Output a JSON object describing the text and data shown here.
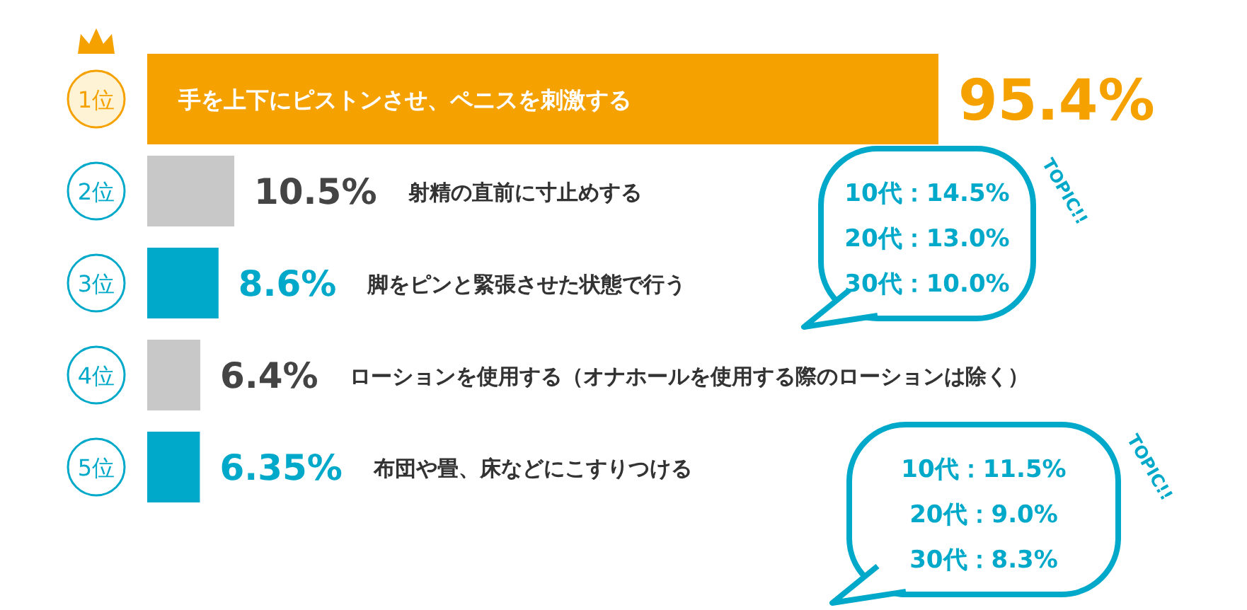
{
  "chart_data": {
    "type": "bar",
    "orientation": "horizontal",
    "categories": [
      "手を上下にピストンさせ、ペニスを刺激する",
      "射精の直前に寸止めする",
      "脚をピンと緊張させた状態で行う",
      "ローションを使用する（オナホールを使用する際のローションは除く）",
      "布団や畳、床などにこすりつける"
    ],
    "values": [
      95.4,
      10.5,
      8.6,
      6.4,
      6.35
    ],
    "value_labels": [
      "95.4%",
      "10.5%",
      "8.6%",
      "6.4%",
      "6.35%"
    ],
    "colors": [
      "#f5a200",
      "#c8c8c8",
      "#00a9c9",
      "#c8c8c8",
      "#00a9c9"
    ],
    "annotations": [
      "1位",
      "2位",
      "3位",
      "4位",
      "5位",
      "TOPIC!!",
      "10代：14.5%",
      "20代：13.0%",
      "30代：10.0%",
      "TOPIC!!",
      "10代：11.5%",
      "20代：9.0%",
      "30代：8.3%"
    ]
  }
}
